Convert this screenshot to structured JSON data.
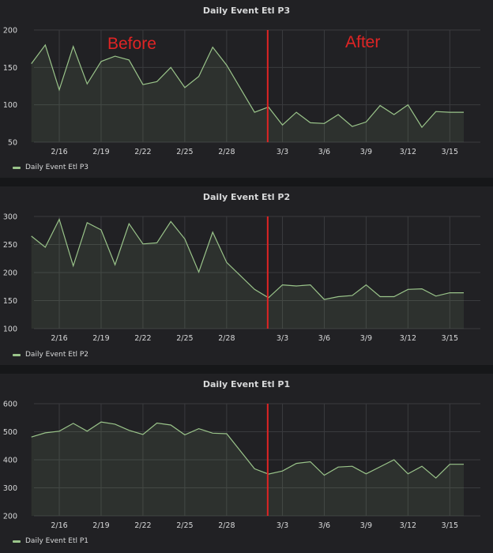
{
  "colors": {
    "series": "#9ac48a",
    "fill": "rgba(154,196,138,0.10)",
    "grid": "#3a3b3e",
    "text": "#d8d9da",
    "marker": "#e02424",
    "annotation": "#e02424"
  },
  "annotations": {
    "before": "Before",
    "after": "After"
  },
  "marker_date": "3/2",
  "chart_data": [
    {
      "type": "area",
      "title": "Daily Event Etl P3",
      "legend": "Daily Event Etl P3",
      "legend_position": "bottom-left",
      "grid": true,
      "xlim": [
        "2/14",
        "3/16"
      ],
      "ylim": [
        50,
        200
      ],
      "yticks": [
        50,
        100,
        150,
        200
      ],
      "xticks": [
        "2/16",
        "2/19",
        "2/22",
        "2/25",
        "2/28",
        "3/3",
        "3/6",
        "3/9",
        "3/12",
        "3/15"
      ],
      "x": [
        "2/14",
        "2/15",
        "2/16",
        "2/17",
        "2/18",
        "2/19",
        "2/20",
        "2/21",
        "2/22",
        "2/23",
        "2/24",
        "2/25",
        "2/26",
        "2/27",
        "2/28",
        "3/1",
        "3/2",
        "3/3",
        "3/4",
        "3/5",
        "3/6",
        "3/7",
        "3/8",
        "3/9",
        "3/10",
        "3/11",
        "3/12",
        "3/13",
        "3/14",
        "3/15",
        "3/16"
      ],
      "values": [
        155,
        180,
        120,
        178,
        128,
        158,
        165,
        160,
        127,
        131,
        150,
        123,
        138,
        177,
        153,
        90,
        97,
        73,
        90,
        76,
        75,
        87,
        71,
        77,
        99,
        87,
        100,
        70,
        91,
        90,
        90
      ]
    },
    {
      "type": "area",
      "title": "Daily Event Etl P2",
      "legend": "Daily Event Etl P2",
      "legend_position": "bottom-left",
      "grid": true,
      "xlim": [
        "2/14",
        "3/16"
      ],
      "ylim": [
        100,
        300
      ],
      "yticks": [
        100,
        150,
        200,
        250,
        300
      ],
      "xticks": [
        "2/16",
        "2/19",
        "2/22",
        "2/25",
        "2/28",
        "3/3",
        "3/6",
        "3/9",
        "3/12",
        "3/15"
      ],
      "x": [
        "2/14",
        "2/15",
        "2/16",
        "2/17",
        "2/18",
        "2/19",
        "2/20",
        "2/21",
        "2/22",
        "2/23",
        "2/24",
        "2/25",
        "2/26",
        "2/27",
        "2/28",
        "3/1",
        "3/2",
        "3/3",
        "3/4",
        "3/5",
        "3/6",
        "3/7",
        "3/8",
        "3/9",
        "3/10",
        "3/11",
        "3/12",
        "3/13",
        "3/14",
        "3/15",
        "3/16"
      ],
      "values": [
        265,
        245,
        295,
        212,
        289,
        276,
        214,
        287,
        251,
        253,
        291,
        260,
        201,
        272,
        218,
        170,
        155,
        178,
        176,
        178,
        152,
        157,
        159,
        178,
        157,
        157,
        170,
        171,
        158,
        164,
        164
      ]
    },
    {
      "type": "area",
      "title": "Daily Event Etl P1",
      "legend": "Daily Event Etl P1",
      "legend_position": "bottom-left",
      "grid": true,
      "xlim": [
        "2/14",
        "3/16"
      ],
      "ylim": [
        200,
        600
      ],
      "yticks": [
        200,
        300,
        400,
        500,
        600
      ],
      "xticks": [
        "2/16",
        "2/19",
        "2/22",
        "2/25",
        "2/28",
        "3/3",
        "3/6",
        "3/9",
        "3/12",
        "3/15"
      ],
      "x": [
        "2/14",
        "2/15",
        "2/16",
        "2/17",
        "2/18",
        "2/19",
        "2/20",
        "2/21",
        "2/22",
        "2/23",
        "2/24",
        "2/25",
        "2/26",
        "2/27",
        "2/28",
        "3/1",
        "3/2",
        "3/3",
        "3/4",
        "3/5",
        "3/6",
        "3/7",
        "3/8",
        "3/9",
        "3/10",
        "3/11",
        "3/12",
        "3/13",
        "3/14",
        "3/15",
        "3/16"
      ],
      "values": [
        481,
        496,
        502,
        530,
        502,
        535,
        527,
        505,
        490,
        531,
        524,
        489,
        511,
        495,
        493,
        368,
        349,
        360,
        387,
        393,
        345,
        374,
        377,
        350,
        375,
        400,
        350,
        377,
        335,
        384,
        384
      ]
    }
  ]
}
